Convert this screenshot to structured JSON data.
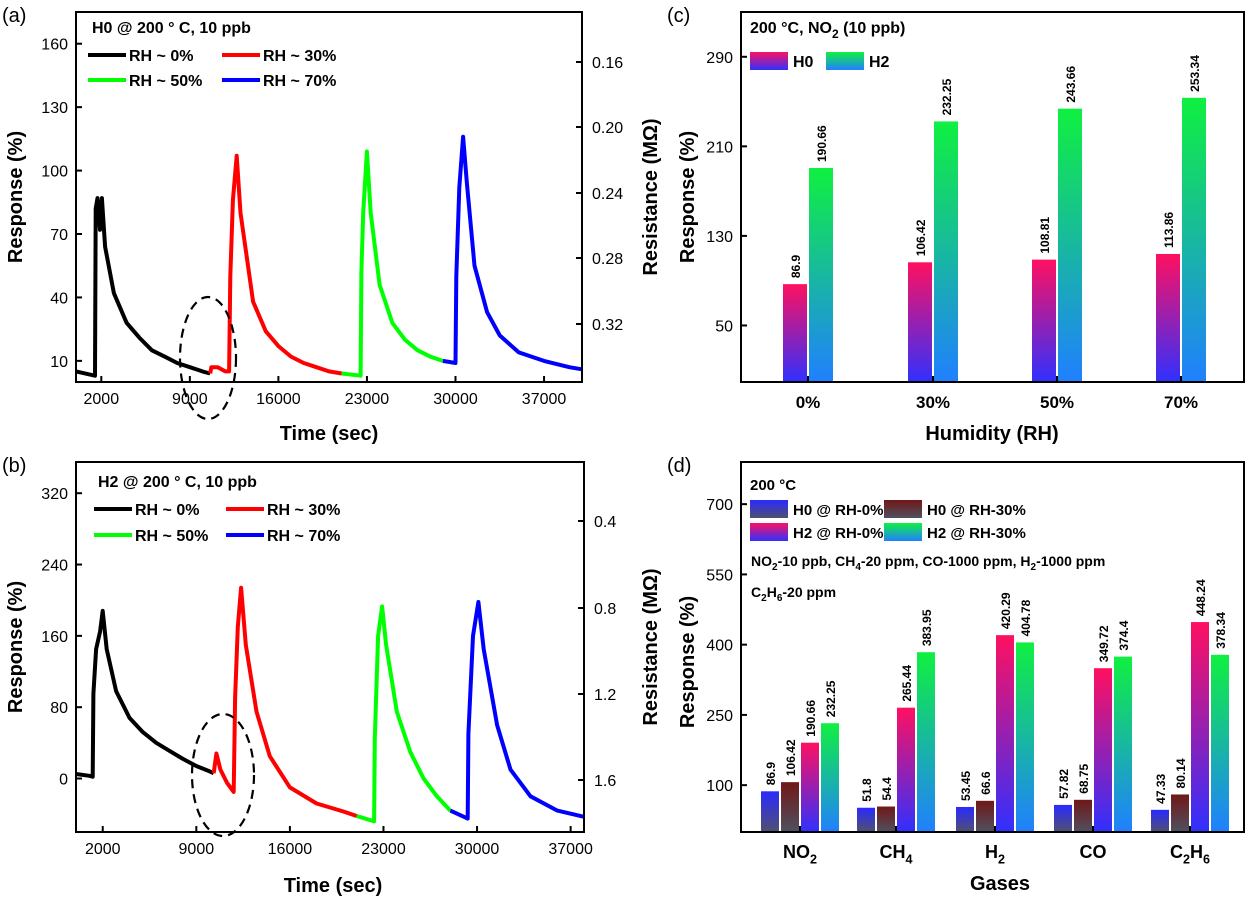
{
  "chart_data": [
    {
      "panel": "(a)",
      "type": "line",
      "title": "H0 @ 200 ° C, 10 ppb",
      "xlabel": "Time (sec)",
      "ylabel": "Response (%)",
      "y2label": "Resistance (MΩ)",
      "xticks": [
        2000,
        9000,
        16000,
        23000,
        30000,
        37000
      ],
      "yticks": [
        10,
        40,
        70,
        100,
        130,
        160
      ],
      "y2ticks": [
        "0.16",
        "0.20",
        "0.24",
        "0.28",
        "0.32"
      ],
      "xlim": [
        0,
        40000
      ],
      "ylim": [
        0,
        175
      ],
      "series": [
        {
          "name": "RH ~ 0%",
          "color": "#000000",
          "points": [
            [
              0,
              5
            ],
            [
              1500,
              3
            ],
            [
              1560,
              82
            ],
            [
              1700,
              87
            ],
            [
              1900,
              72
            ],
            [
              2050,
              87
            ],
            [
              2300,
              64
            ],
            [
              3000,
              42
            ],
            [
              4000,
              28
            ],
            [
              5000,
              21
            ],
            [
              6000,
              15
            ],
            [
              7000,
              12
            ],
            [
              8000,
              9
            ],
            [
              9000,
              7
            ],
            [
              10000,
              5
            ],
            [
              10600,
              4
            ]
          ]
        },
        {
          "name": "RH ~ 30%",
          "color": "#ff0000",
          "points": [
            [
              10600,
              4
            ],
            [
              10700,
              7
            ],
            [
              11200,
              7
            ],
            [
              11800,
              5
            ],
            [
              12100,
              5
            ],
            [
              12200,
              50
            ],
            [
              12400,
              86
            ],
            [
              12700,
              107
            ],
            [
              13000,
              80
            ],
            [
              14000,
              38
            ],
            [
              15000,
              24
            ],
            [
              16000,
              17
            ],
            [
              17000,
              12
            ],
            [
              18000,
              9
            ],
            [
              19000,
              7
            ],
            [
              20000,
              5
            ],
            [
              21000,
              4
            ]
          ]
        },
        {
          "name": "RH ~ 50%",
          "color": "#00ff00",
          "points": [
            [
              21000,
              4
            ],
            [
              22500,
              3
            ],
            [
              22560,
              52
            ],
            [
              22700,
              80
            ],
            [
              23000,
              109
            ],
            [
              23300,
              80
            ],
            [
              24000,
              46
            ],
            [
              25000,
              28
            ],
            [
              26000,
              20
            ],
            [
              27000,
              15
            ],
            [
              28000,
              12
            ],
            [
              29000,
              10
            ]
          ]
        },
        {
          "name": "RH ~ 70%",
          "color": "#0000ff",
          "points": [
            [
              29000,
              10
            ],
            [
              30000,
              9
            ],
            [
              30060,
              50
            ],
            [
              30300,
              92
            ],
            [
              30600,
              116
            ],
            [
              30900,
              94
            ],
            [
              31500,
              55
            ],
            [
              32500,
              33
            ],
            [
              33500,
              22
            ],
            [
              35000,
              14
            ],
            [
              37000,
              10
            ],
            [
              39000,
              7
            ],
            [
              40000,
              6
            ]
          ]
        }
      ]
    },
    {
      "panel": "(b)",
      "type": "line",
      "title": "H2 @ 200 ° C, 10 ppb",
      "xlabel": "Time (sec)",
      "ylabel": "Response (%)",
      "y2label": "Resistance (MΩ)",
      "xticks": [
        2000,
        9000,
        16000,
        23000,
        30000,
        37000
      ],
      "yticks": [
        0,
        80,
        160,
        240,
        320
      ],
      "y2ticks": [
        "0.4",
        "0.8",
        "1.2",
        "1.6"
      ],
      "xlim": [
        0,
        38000
      ],
      "ylim": [
        -60,
        355
      ],
      "series": [
        {
          "name": "RH ~ 0%",
          "color": "#000000",
          "points": [
            [
              0,
              5
            ],
            [
              1000,
              3
            ],
            [
              1250,
              2
            ],
            [
              1300,
              95
            ],
            [
              1500,
              145
            ],
            [
              1800,
              165
            ],
            [
              2000,
              188
            ],
            [
              2300,
              145
            ],
            [
              3000,
              98
            ],
            [
              4000,
              68
            ],
            [
              5000,
              52
            ],
            [
              6000,
              40
            ],
            [
              7000,
              31
            ],
            [
              8000,
              22
            ],
            [
              9000,
              14
            ],
            [
              10000,
              8
            ],
            [
              10300,
              6
            ]
          ]
        },
        {
          "name": "RH ~ 30%",
          "color": "#ff0000",
          "points": [
            [
              10300,
              6
            ],
            [
              10500,
              28
            ],
            [
              10800,
              10
            ],
            [
              11300,
              -5
            ],
            [
              11800,
              -15
            ],
            [
              11900,
              90
            ],
            [
              12100,
              170
            ],
            [
              12350,
              214
            ],
            [
              12700,
              150
            ],
            [
              13500,
              75
            ],
            [
              14500,
              25
            ],
            [
              16000,
              -10
            ],
            [
              18000,
              -28
            ],
            [
              20000,
              -37
            ],
            [
              21000,
              -42
            ]
          ]
        },
        {
          "name": "RH ~ 50%",
          "color": "#00ff00",
          "points": [
            [
              21000,
              -42
            ],
            [
              22300,
              -48
            ],
            [
              22350,
              45
            ],
            [
              22600,
              160
            ],
            [
              22900,
              193
            ],
            [
              23200,
              150
            ],
            [
              24000,
              75
            ],
            [
              25000,
              30
            ],
            [
              26000,
              0
            ],
            [
              27000,
              -20
            ],
            [
              28000,
              -36
            ]
          ]
        },
        {
          "name": "RH ~ 70%",
          "color": "#0000ff",
          "points": [
            [
              28000,
              -36
            ],
            [
              29300,
              -45
            ],
            [
              29350,
              50
            ],
            [
              29700,
              160
            ],
            [
              30100,
              198
            ],
            [
              30500,
              145
            ],
            [
              31500,
              60
            ],
            [
              32500,
              10
            ],
            [
              34000,
              -20
            ],
            [
              36000,
              -36
            ],
            [
              38000,
              -43
            ]
          ]
        }
      ]
    },
    {
      "panel": "(c)",
      "type": "bar",
      "title": "200 °C, NO2 (10 ppb)",
      "xlabel": "Humidity (RH)",
      "ylabel": "Response (%)",
      "categories": [
        "0%",
        "30%",
        "50%",
        "70%"
      ],
      "yticks": [
        50,
        130,
        210,
        290
      ],
      "ylim": [
        -0.5,
        330
      ],
      "series": [
        {
          "name": "H0",
          "values": [
            86.9,
            106.42,
            108.81,
            113.86
          ],
          "labels": [
            "86.9",
            "106.42",
            "108.81",
            "113.86"
          ],
          "color_top": "#ff1060",
          "color_bottom": "#3030ff"
        },
        {
          "name": "H2",
          "values": [
            190.66,
            232.25,
            243.66,
            253.34
          ],
          "labels": [
            "190.66",
            "232.25",
            "243.66",
            "253.34"
          ],
          "color_top": "#10f040",
          "color_bottom": "#2080ff"
        }
      ]
    },
    {
      "panel": "(d)",
      "type": "bar",
      "title": "200 °C",
      "subtitle": "NO2-10 ppb,  CH4-20 ppm,  CO-1000 ppm, H2-1000 ppm",
      "subtitle2": "C2H6-20 ppm",
      "xlabel": "Gases",
      "ylabel": "Response (%)",
      "categories": [
        "NO2",
        "CH4",
        "H2",
        "CO",
        "C2H6"
      ],
      "yticks": [
        100,
        250,
        400,
        550,
        700
      ],
      "ylim": [
        0,
        790
      ],
      "series": [
        {
          "name": "H0 @ RH-0%",
          "values": [
            86.9,
            51.8,
            53.45,
            57.82,
            47.33
          ],
          "labels": [
            "86.9",
            "51.8",
            "53.45",
            "57.82",
            "47.33"
          ],
          "color_top": "#2a2aff",
          "color_bottom": "#505070"
        },
        {
          "name": "H0 @ RH-30%",
          "values": [
            106.42,
            54.4,
            66.6,
            68.75,
            80.14
          ],
          "labels": [
            "106.42",
            "54.4",
            "66.6",
            "68.75",
            "80.14"
          ],
          "color_top": "#701818",
          "color_bottom": "#505060"
        },
        {
          "name": "H2 @ RH-0%",
          "values": [
            190.66,
            265.44,
            420.29,
            349.72,
            448.24
          ],
          "labels": [
            "190.66",
            "265.44",
            "420.29",
            "349.72",
            "448.24"
          ],
          "color_top": "#ff1060",
          "color_bottom": "#3030ff"
        },
        {
          "name": "H2 @ RH-30%",
          "values": [
            232.25,
            383.95,
            404.78,
            374.4,
            378.34
          ],
          "labels": [
            "232.25",
            "383.95",
            "404.78",
            "374.4",
            "378.34"
          ],
          "color_top": "#10f040",
          "color_bottom": "#2080ff"
        }
      ]
    }
  ]
}
